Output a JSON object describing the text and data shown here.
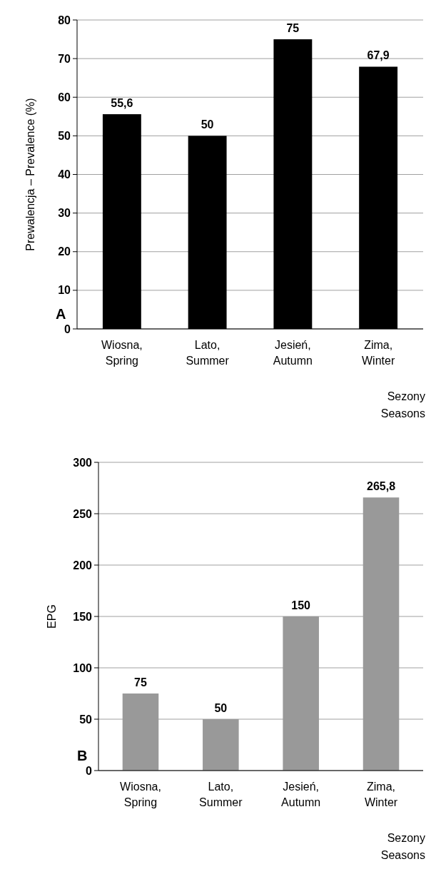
{
  "chart_data": [
    {
      "type": "bar",
      "ylabel": "Prewalencja – Prevalence (%)",
      "xlabel": "Sezony Seasons",
      "annotations": [
        "A"
      ],
      "categories": [
        "Wiosna, Spring",
        "Lato, Summer",
        "Jesień, Autumn",
        "Zima, Winter"
      ],
      "values": [
        55.6,
        50,
        75,
        67.9
      ],
      "value_labels": [
        "55,6",
        "50",
        "75",
        "67,9"
      ],
      "color": "#000000",
      "ylim": [
        0,
        80
      ],
      "yticks": [
        0,
        10,
        20,
        30,
        40,
        50,
        60,
        70,
        80
      ],
      "grid": "y"
    },
    {
      "type": "bar",
      "ylabel": "EPG",
      "xlabel": "Sezony Seasons",
      "annotations": [
        "B"
      ],
      "categories": [
        "Wiosna, Spring",
        "Lato, Summer",
        "Jesień, Autumn",
        "Zima, Winter"
      ],
      "values": [
        75,
        50,
        150,
        265.8
      ],
      "value_labels": [
        "75",
        "50",
        "150",
        "265,8"
      ],
      "color": "#999999",
      "ylim": [
        0,
        300
      ],
      "yticks": [
        0,
        50,
        100,
        150,
        200,
        250,
        300
      ],
      "grid": "y"
    }
  ]
}
